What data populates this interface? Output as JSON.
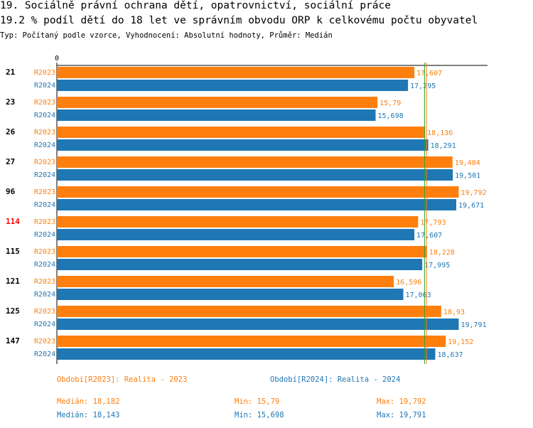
{
  "header": {
    "title": "19. Sociálně právní ochrana dětí, opatrovnictví, sociální práce",
    "metric": "19.2 % podíl dětí do 18 let ve správním obvodu ORP k celkovému počtu obyvatel",
    "subtitle": "Typ: Počítaný podle vzorce, Vyhodnocení: Absolutní hodnoty, Průměr: Medián"
  },
  "colors": {
    "r2023": "#ff7f0e",
    "r2024": "#1f77b4",
    "highlight_group": "#ff0000",
    "median_line_2023": "#ff7f0e",
    "median_line_2024": "#2ca02c"
  },
  "chart_data": {
    "type": "bar",
    "orientation": "horizontal",
    "axis_zero_label": "0",
    "xlim": [
      0,
      21.0
    ],
    "highlight_category": "114",
    "categories": [
      "21",
      "23",
      "26",
      "27",
      "96",
      "114",
      "115",
      "121",
      "125",
      "147"
    ],
    "series": [
      {
        "name": "R2023",
        "values": [
          17.607,
          15.79,
          18.136,
          19.484,
          19.792,
          17.793,
          18.228,
          16.596,
          18.93,
          19.152
        ],
        "labels": [
          "17,607",
          "15,79",
          "18,136",
          "19,484",
          "19,792",
          "17,793",
          "18,228",
          "16,596",
          "18,93",
          "19,152"
        ]
      },
      {
        "name": "R2024",
        "values": [
          17.295,
          15.698,
          18.291,
          19.501,
          19.671,
          17.607,
          17.995,
          17.063,
          19.791,
          18.637
        ],
        "labels": [
          "17,295",
          "15,698",
          "18,291",
          "19,501",
          "19,671",
          "17,607",
          "17,995",
          "17,063",
          "19,791",
          "18,637"
        ]
      }
    ],
    "medians": [
      18.182,
      18.143
    ]
  },
  "legend": {
    "r2023_period": "Období[R2023]: Realita - 2023",
    "r2024_period": "Období[R2024]: Realita - 2024",
    "r2023_median": "Medián: 18,182",
    "r2023_min": "Min: 15,79",
    "r2023_max": "Max: 19,792",
    "r2024_median": "Medián: 18,143",
    "r2024_min": "Min: 15,698",
    "r2024_max": "Max: 19,791"
  }
}
